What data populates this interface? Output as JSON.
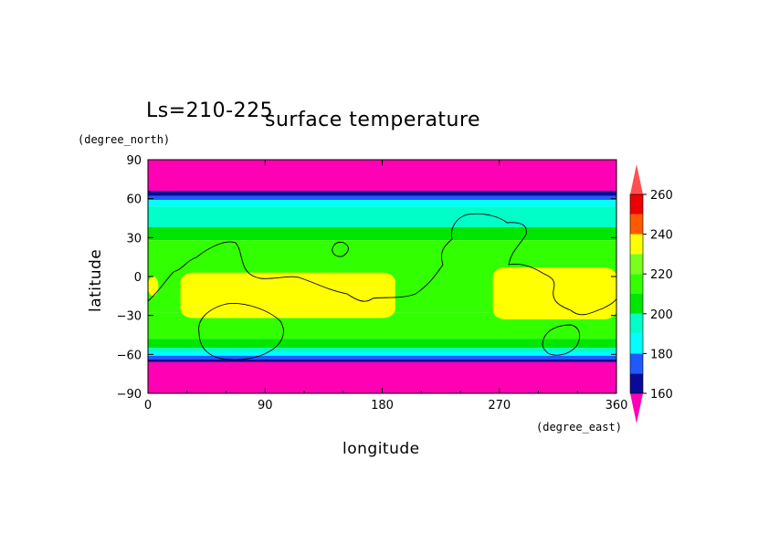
{
  "chart_data": {
    "type": "heatmap",
    "season_label": "Ls=210-225",
    "title": "surface temperature",
    "xlabel": "longitude",
    "ylabel": "latitude",
    "x_unit": "(degree_east)",
    "y_unit": "(degree_north)",
    "xlim": [
      0,
      360
    ],
    "ylim": [
      -90,
      90
    ],
    "x_ticks": [
      0,
      90,
      180,
      270,
      360
    ],
    "y_ticks": [
      90,
      60,
      30,
      0,
      -30,
      -60,
      -90
    ],
    "colorbar": {
      "levels": [
        160,
        180,
        200,
        220,
        240,
        260
      ],
      "tick_labels": [
        "160",
        "180",
        "200",
        "220",
        "240",
        "260"
      ],
      "bins": [
        {
          "range": "<160",
          "color": "#ff00b4"
        },
        {
          "range": "160-170",
          "color": "#0a0a96"
        },
        {
          "range": "170-180",
          "color": "#1e5aff"
        },
        {
          "range": "180-190",
          "color": "#00ffff"
        },
        {
          "range": "190-200",
          "color": "#00ffc8"
        },
        {
          "range": "200-210",
          "color": "#00e600"
        },
        {
          "range": "210-220",
          "color": "#32ff00"
        },
        {
          "range": "220-230",
          "color": "#78ff1e"
        },
        {
          "range": "230-240",
          "color": "#ffff00"
        },
        {
          "range": "240-250",
          "color": "#ff5a00"
        },
        {
          "range": "250-260",
          "color": "#ee0000"
        },
        {
          "range": ">260",
          "color": "#ff5050"
        }
      ]
    },
    "bands_by_latitude": [
      {
        "lat": [
          65,
          90
        ],
        "value": 150
      },
      {
        "lat": [
          62,
          66
        ],
        "value": 165
      },
      {
        "lat": [
          59,
          62
        ],
        "value": 175
      },
      {
        "lat": [
          54,
          59
        ],
        "value": 182
      },
      {
        "lat": [
          45,
          54
        ],
        "value": 190
      },
      {
        "lat": [
          38,
          45
        ],
        "value": 196
      },
      {
        "lat": [
          28,
          38
        ],
        "value": 205
      },
      {
        "lat": [
          -28,
          28
        ],
        "value": 210
      },
      {
        "lat": [
          -48,
          -28
        ],
        "value": 215
      },
      {
        "lat": [
          -55,
          -48
        ],
        "value": 205
      },
      {
        "lat": [
          -58,
          -55
        ],
        "value": 195
      },
      {
        "lat": [
          -61,
          -58
        ],
        "value": 185
      },
      {
        "lat": [
          -64,
          -61
        ],
        "value": 175
      },
      {
        "lat": [
          -66,
          -64
        ],
        "value": 165
      },
      {
        "lat": [
          -90,
          -66
        ],
        "value": 150
      }
    ],
    "warm_regions": [
      {
        "lon": [
          0,
          8
        ],
        "lat": [
          -15,
          0
        ],
        "value": 235
      },
      {
        "lon": [
          25,
          190
        ],
        "lat": [
          -32,
          3
        ],
        "value": 235
      },
      {
        "lon": [
          265,
          360
        ],
        "lat": [
          -33,
          7
        ],
        "value": 235
      }
    ],
    "contour_lines": "topography outline (black, thin)"
  }
}
